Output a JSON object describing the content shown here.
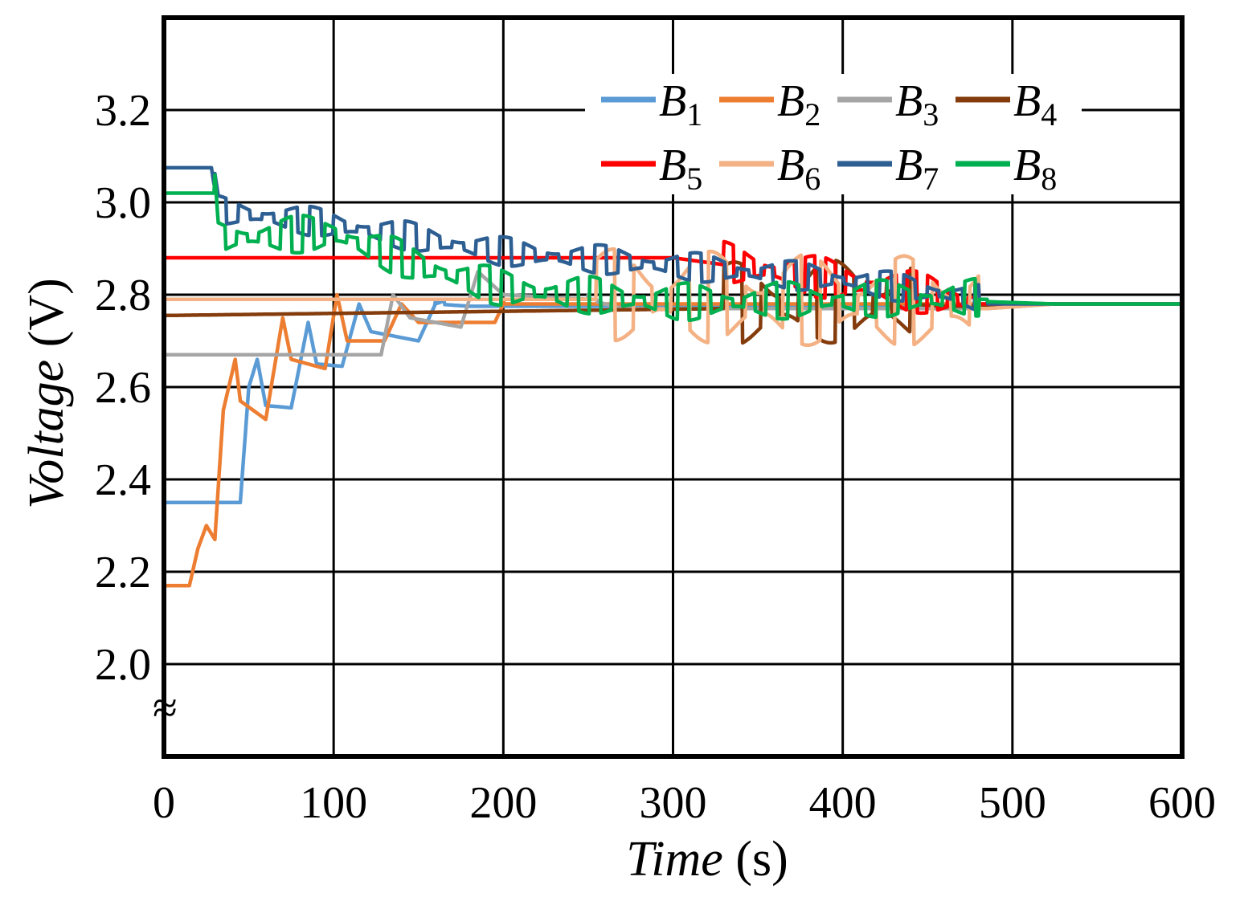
{
  "chart_data": {
    "type": "line",
    "title": "",
    "xlabel": {
      "italic": "Time",
      "normal": " (s)"
    },
    "ylabel": {
      "italic": "Voltage",
      "normal": " (V)"
    },
    "xlim": [
      0,
      600
    ],
    "ylim": [
      1.8,
      3.4
    ],
    "xticks": [
      "0",
      "100",
      "200",
      "300",
      "400",
      "500",
      "600"
    ],
    "yticks": [
      "2.0",
      "2.2",
      "2.4",
      "2.6",
      "2.8",
      "3.0",
      "3.2"
    ],
    "break_mark": "≈",
    "grid": true,
    "legend_position": "top-right",
    "series": [
      {
        "name": "B",
        "sub": "1",
        "color": "#5b9bd5",
        "start": 2.35,
        "final": 2.775,
        "active_until": 160,
        "switch_amp": 0.03,
        "period": 13,
        "pattern": [
          [
            0,
            2.35
          ],
          [
            45,
            2.35
          ],
          [
            50,
            2.6
          ],
          [
            55,
            2.66
          ],
          [
            60,
            2.56
          ],
          [
            75,
            2.555
          ],
          [
            85,
            2.74
          ],
          [
            90,
            2.65
          ],
          [
            105,
            2.645
          ],
          [
            115,
            2.78
          ],
          [
            122,
            2.72
          ],
          [
            150,
            2.7
          ],
          [
            160,
            2.78
          ],
          [
            175,
            2.8
          ]
        ]
      },
      {
        "name": "B",
        "sub": "2",
        "color": "#ed7d31",
        "start": 2.17,
        "final": 2.78,
        "active_until": 200,
        "switch_amp": 0.03,
        "period": 13,
        "pattern": [
          [
            0,
            2.17
          ],
          [
            15,
            2.17
          ],
          [
            20,
            2.25
          ],
          [
            25,
            2.3
          ],
          [
            30,
            2.27
          ],
          [
            35,
            2.55
          ],
          [
            42,
            2.66
          ],
          [
            45,
            2.57
          ],
          [
            60,
            2.53
          ],
          [
            70,
            2.75
          ],
          [
            75,
            2.66
          ],
          [
            95,
            2.64
          ],
          [
            102,
            2.8
          ],
          [
            108,
            2.7
          ],
          [
            130,
            2.7
          ],
          [
            140,
            2.78
          ],
          [
            150,
            2.74
          ],
          [
            195,
            2.74
          ],
          [
            200,
            2.78
          ]
        ]
      },
      {
        "name": "B",
        "sub": "3",
        "color": "#a5a5a5",
        "start": 2.67,
        "final": 2.77,
        "active_until": 250,
        "switch_amp": 0.03,
        "period": 13,
        "pattern": [
          [
            0,
            2.67
          ],
          [
            128,
            2.67
          ],
          [
            135,
            2.8
          ],
          [
            145,
            2.75
          ],
          [
            175,
            2.73
          ],
          [
            185,
            2.85
          ],
          [
            200,
            2.8
          ],
          [
            250,
            2.79
          ]
        ]
      },
      {
        "name": "B",
        "sub": "4",
        "color": "#843c0c",
        "start": 2.76,
        "final": 2.775,
        "active_until": 440,
        "switch_amp": 0.1,
        "period": 22,
        "amp_start": 330,
        "pattern": [
          [
            0,
            2.755
          ],
          [
            330,
            2.77
          ],
          [
            440,
            2.78
          ],
          [
            480,
            2.775
          ]
        ]
      },
      {
        "name": "B",
        "sub": "5",
        "color": "#ff0000",
        "start": 2.88,
        "final": 2.78,
        "active_until": 480,
        "switch_amp": 0.05,
        "period": 12,
        "amp_start": 330,
        "pattern": [
          [
            0,
            2.88
          ],
          [
            300,
            2.88
          ],
          [
            340,
            2.86
          ],
          [
            480,
            2.78
          ]
        ]
      },
      {
        "name": "B",
        "sub": "6",
        "color": "#f4b183",
        "start": 2.79,
        "final": 2.77,
        "active_until": 480,
        "switch_amp": 0.11,
        "period": 22,
        "amp_start": 255,
        "pattern": [
          [
            0,
            2.79
          ],
          [
            250,
            2.79
          ],
          [
            480,
            2.77
          ]
        ]
      },
      {
        "name": "B",
        "sub": "7",
        "color": "#2e5f93",
        "start": 3.07,
        "final": 2.78,
        "active_until": 480,
        "switch_amp": 0.035,
        "period": 14,
        "amp_start": 30,
        "pattern": [
          [
            0,
            3.075
          ],
          [
            28,
            3.075
          ],
          [
            32,
            2.98
          ],
          [
            100,
            2.95
          ],
          [
            200,
            2.89
          ],
          [
            300,
            2.86
          ],
          [
            400,
            2.83
          ],
          [
            480,
            2.79
          ]
        ]
      },
      {
        "name": "B",
        "sub": "8",
        "color": "#00b050",
        "start": 3.02,
        "final": 2.785,
        "active_until": 480,
        "switch_amp": 0.045,
        "period": 13,
        "amp_start": 30,
        "pattern": [
          [
            0,
            3.02
          ],
          [
            30,
            3.02
          ],
          [
            32,
            2.92
          ],
          [
            100,
            2.93
          ],
          [
            150,
            2.86
          ],
          [
            200,
            2.81
          ],
          [
            300,
            2.78
          ],
          [
            480,
            2.79
          ]
        ]
      }
    ]
  }
}
